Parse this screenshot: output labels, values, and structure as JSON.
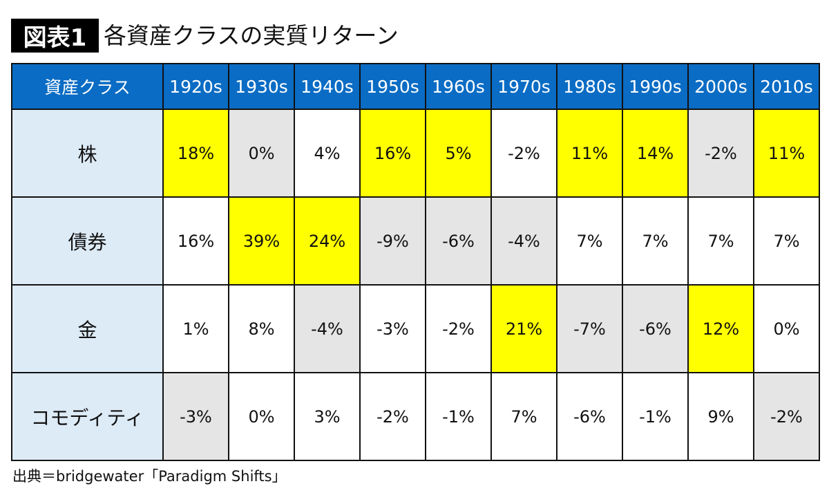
{
  "badge": "図表1",
  "title": "各資産クラスの実質リターン",
  "source": "出典＝bridgewater「Paradigm Shifts」",
  "colors": {
    "header": "#0a6cc4",
    "label_bg": "#ddebf7",
    "y": "#ffff00",
    "g": "#e6e5e5",
    "w": "#ffffff"
  },
  "chart_data": {
    "type": "table",
    "corner_header": "資産クラス",
    "columns": [
      "1920s",
      "1930s",
      "1940s",
      "1950s",
      "1960s",
      "1970s",
      "1980s",
      "1990s",
      "2000s",
      "2010s"
    ],
    "rows": [
      {
        "label": "株",
        "values": [
          "18%",
          "0%",
          "4%",
          "16%",
          "5%",
          "-2%",
          "11%",
          "14%",
          "-2%",
          "11%"
        ],
        "highlight": [
          "y",
          "g",
          "w",
          "y",
          "y",
          "w",
          "y",
          "y",
          "g",
          "y"
        ]
      },
      {
        "label": "債券",
        "values": [
          "16%",
          "39%",
          "24%",
          "-9%",
          "-6%",
          "-4%",
          "7%",
          "7%",
          "7%",
          "7%"
        ],
        "highlight": [
          "w",
          "y",
          "y",
          "g",
          "g",
          "g",
          "w",
          "w",
          "w",
          "w"
        ]
      },
      {
        "label": "金",
        "values": [
          "1%",
          "8%",
          "-4%",
          "-3%",
          "-2%",
          "21%",
          "-7%",
          "-6%",
          "12%",
          "0%"
        ],
        "highlight": [
          "w",
          "w",
          "g",
          "w",
          "w",
          "y",
          "g",
          "g",
          "y",
          "w"
        ]
      },
      {
        "label": "コモディティ",
        "values": [
          "-3%",
          "0%",
          "3%",
          "-2%",
          "-1%",
          "7%",
          "-6%",
          "-1%",
          "9%",
          "-2%"
        ],
        "highlight": [
          "g",
          "w",
          "w",
          "w",
          "w",
          "w",
          "w",
          "w",
          "w",
          "g"
        ]
      }
    ]
  }
}
